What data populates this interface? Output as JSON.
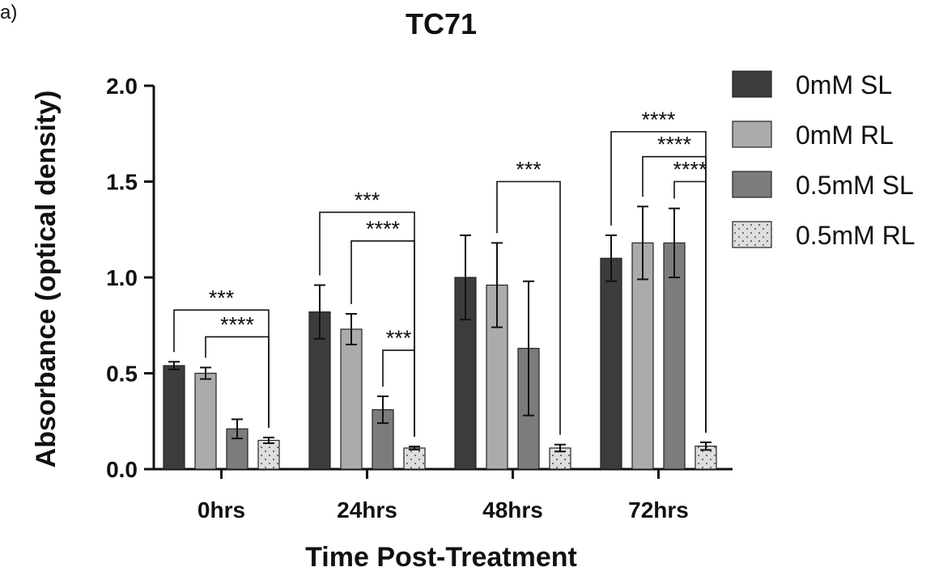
{
  "panel_label": "a)",
  "chart_data": {
    "type": "bar",
    "title": "TC71",
    "xlabel": "Time Post-Treatment",
    "ylabel": "Absorbance (optical density)",
    "ylim": [
      0,
      2.0
    ],
    "yticks": [
      "0.0",
      "0.5",
      "1.0",
      "1.5",
      "2.0"
    ],
    "categories": [
      "0hrs",
      "24hrs",
      "48hrs",
      "72hrs"
    ],
    "legend_position": "right",
    "series": [
      {
        "name": "0mM SL",
        "color": "#3c3c3c",
        "pattern": "solid",
        "values": [
          0.54,
          0.82,
          1.0,
          1.1
        ],
        "errors": [
          0.02,
          0.14,
          0.22,
          0.12
        ]
      },
      {
        "name": "0mM RL",
        "color": "#ababab",
        "pattern": "solid",
        "values": [
          0.5,
          0.73,
          0.96,
          1.18
        ],
        "errors": [
          0.03,
          0.08,
          0.22,
          0.19
        ]
      },
      {
        "name": "0.5mM SL",
        "color": "#7c7c7c",
        "pattern": "solid",
        "values": [
          0.21,
          0.31,
          0.63,
          1.18
        ],
        "errors": [
          0.05,
          0.07,
          0.35,
          0.18
        ]
      },
      {
        "name": "0.5mM RL",
        "color": "#dedede",
        "pattern": "dotted",
        "values": [
          0.15,
          0.11,
          0.11,
          0.12
        ],
        "errors": [
          0.015,
          0.008,
          0.018,
          0.02
        ]
      }
    ],
    "significance": [
      {
        "group": 0,
        "from_series": 0,
        "to_series": 3,
        "height": 0.83,
        "label": "***"
      },
      {
        "group": 0,
        "from_series": 1,
        "to_series": 3,
        "height": 0.69,
        "label": "****"
      },
      {
        "group": 1,
        "from_series": 0,
        "to_series": 3,
        "height": 1.34,
        "label": "***"
      },
      {
        "group": 1,
        "from_series": 1,
        "to_series": 3,
        "height": 1.19,
        "label": "****"
      },
      {
        "group": 1,
        "from_series": 2,
        "to_series": 3,
        "height": 0.62,
        "label": "***"
      },
      {
        "group": 2,
        "from_series": 1,
        "to_series": 3,
        "height": 1.5,
        "label": "***"
      },
      {
        "group": 3,
        "from_series": 0,
        "to_series": 3,
        "height": 1.76,
        "label": "****"
      },
      {
        "group": 3,
        "from_series": 1,
        "to_series": 3,
        "height": 1.63,
        "label": "****"
      },
      {
        "group": 3,
        "from_series": 2,
        "to_series": 3,
        "height": 1.5,
        "label": "****"
      }
    ]
  }
}
